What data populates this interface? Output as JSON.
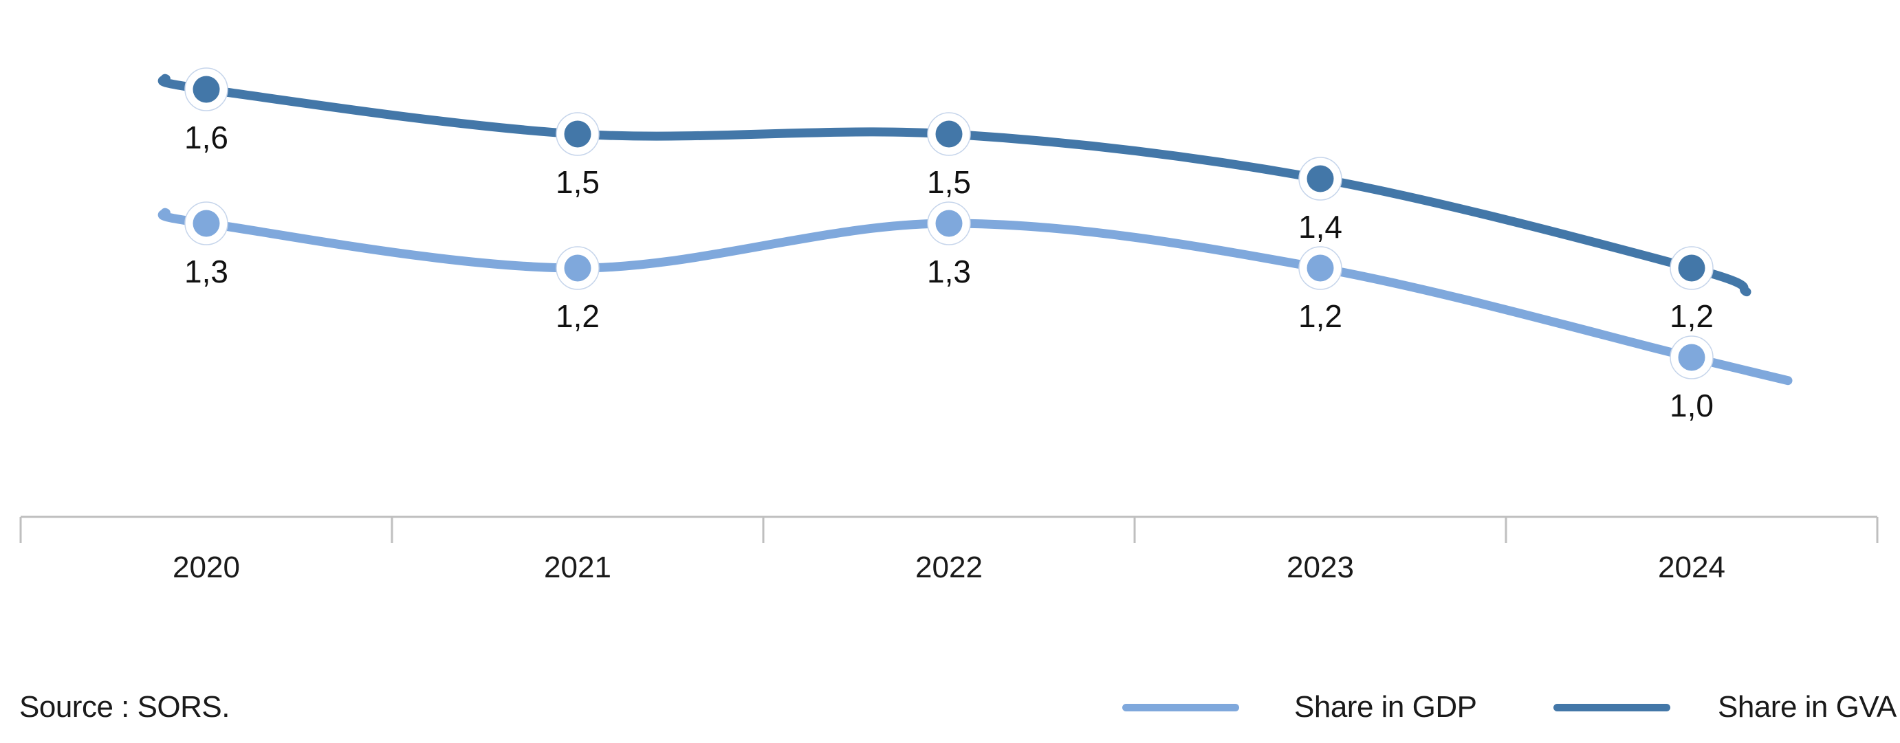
{
  "chart_data": {
    "type": "line",
    "title": "",
    "xlabel": "",
    "ylabel": "",
    "categories": [
      "2020",
      "2021",
      "2022",
      "2023",
      "2024"
    ],
    "series": [
      {
        "name": "Share in GDP",
        "color": "#7FA8DC",
        "values": [
          1.3,
          1.2,
          1.3,
          1.2,
          1.0
        ],
        "point_labels": [
          "1,3",
          "1,2",
          "1,3",
          "1,2",
          "1,0"
        ]
      },
      {
        "name": "Share in GVA",
        "color": "#4377A8",
        "values": [
          1.6,
          1.5,
          1.5,
          1.4,
          1.2
        ],
        "point_labels": [
          "1,6",
          "1,5",
          "1,5",
          "1,4",
          "1,2"
        ]
      }
    ],
    "decimal_separator": ",",
    "grid": false,
    "y_axis": {
      "visible": false,
      "implied_range": [
        0.9,
        1.7
      ]
    },
    "x_axis": {
      "line_color": "#BFBFBF",
      "label_color": "#1A1A1A"
    },
    "value_label_color": "#111111",
    "marker_ring_color": "#C6D5EB",
    "legend_position": "bottom-right",
    "smooth": true
  },
  "legend": {
    "items": [
      {
        "label": "Share in GDP",
        "color": "#7FA8DC"
      },
      {
        "label": "Share in GVA",
        "color": "#4377A8"
      }
    ]
  },
  "source": {
    "text": "Source : SORS."
  }
}
